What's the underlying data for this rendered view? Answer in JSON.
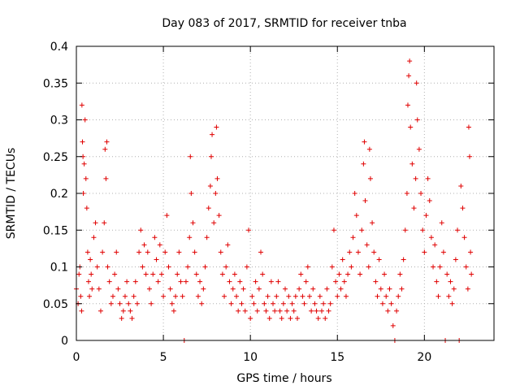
{
  "chart_data": {
    "type": "scatter",
    "title": "Day 083 of 2017, SRMTID for receiver tnba",
    "xlabel": "GPS time / hours",
    "ylabel": "SRMTID / TECUs",
    "xlim": [
      0,
      24
    ],
    "ylim": [
      0,
      0.4
    ],
    "xticks": [
      0,
      5,
      10,
      15,
      20
    ],
    "xtick_labels": [
      "0",
      "5",
      "10",
      "15",
      "20"
    ],
    "yticks": [
      0,
      0.05,
      0.1,
      0.15,
      0.2,
      0.25,
      0.3,
      0.35,
      0.4
    ],
    "ytick_labels": [
      "0",
      "0.05",
      "0.1",
      "0.15",
      "0.2",
      "0.25",
      "0.3",
      "0.35",
      "0.4"
    ],
    "grid": true,
    "marker": "+",
    "color": "#e00000",
    "series": [
      {
        "name": "SRMTID",
        "points": [
          [
            0.0,
            0.07
          ],
          [
            0.1,
            0.05
          ],
          [
            0.15,
            0.09
          ],
          [
            0.2,
            0.1
          ],
          [
            0.25,
            0.06
          ],
          [
            0.3,
            0.04
          ],
          [
            0.32,
            0.32
          ],
          [
            0.35,
            0.27
          ],
          [
            0.38,
            0.25
          ],
          [
            0.4,
            0.2
          ],
          [
            0.45,
            0.24
          ],
          [
            0.5,
            0.3
          ],
          [
            0.55,
            0.22
          ],
          [
            0.6,
            0.18
          ],
          [
            0.65,
            0.12
          ],
          [
            0.7,
            0.08
          ],
          [
            0.75,
            0.06
          ],
          [
            0.8,
            0.11
          ],
          [
            0.85,
            0.09
          ],
          [
            0.9,
            0.07
          ],
          [
            1.0,
            0.14
          ],
          [
            1.1,
            0.16
          ],
          [
            1.2,
            0.1
          ],
          [
            1.3,
            0.07
          ],
          [
            1.4,
            0.04
          ],
          [
            1.5,
            0.12
          ],
          [
            1.6,
            0.16
          ],
          [
            1.65,
            0.26
          ],
          [
            1.7,
            0.22
          ],
          [
            1.75,
            0.27
          ],
          [
            1.8,
            0.1
          ],
          [
            1.9,
            0.08
          ],
          [
            2.0,
            0.05
          ],
          [
            2.1,
            0.06
          ],
          [
            2.2,
            0.09
          ],
          [
            2.3,
            0.12
          ],
          [
            2.4,
            0.07
          ],
          [
            2.5,
            0.05
          ],
          [
            2.6,
            0.03
          ],
          [
            2.7,
            0.04
          ],
          [
            2.8,
            0.06
          ],
          [
            2.9,
            0.08
          ],
          [
            3.0,
            0.05
          ],
          [
            3.1,
            0.04
          ],
          [
            3.2,
            0.03
          ],
          [
            3.3,
            0.06
          ],
          [
            3.4,
            0.08
          ],
          [
            3.5,
            0.05
          ],
          [
            3.6,
            0.12
          ],
          [
            3.7,
            0.15
          ],
          [
            3.8,
            0.1
          ],
          [
            3.9,
            0.13
          ],
          [
            4.0,
            0.09
          ],
          [
            4.1,
            0.12
          ],
          [
            4.2,
            0.07
          ],
          [
            4.3,
            0.05
          ],
          [
            4.4,
            0.09
          ],
          [
            4.5,
            0.14
          ],
          [
            4.6,
            0.11
          ],
          [
            4.7,
            0.08
          ],
          [
            4.8,
            0.13
          ],
          [
            4.9,
            0.09
          ],
          [
            5.0,
            0.06
          ],
          [
            5.1,
            0.12
          ],
          [
            5.2,
            0.17
          ],
          [
            5.3,
            0.1
          ],
          [
            5.4,
            0.07
          ],
          [
            5.5,
            0.05
          ],
          [
            5.6,
            0.04
          ],
          [
            5.7,
            0.06
          ],
          [
            5.8,
            0.09
          ],
          [
            5.9,
            0.12
          ],
          [
            6.0,
            0.08
          ],
          [
            6.1,
            0.06
          ],
          [
            6.2,
            0.0
          ],
          [
            6.3,
            0.08
          ],
          [
            6.4,
            0.1
          ],
          [
            6.5,
            0.14
          ],
          [
            6.55,
            0.25
          ],
          [
            6.6,
            0.2
          ],
          [
            6.7,
            0.16
          ],
          [
            6.8,
            0.12
          ],
          [
            6.9,
            0.09
          ],
          [
            7.0,
            0.06
          ],
          [
            7.1,
            0.08
          ],
          [
            7.2,
            0.05
          ],
          [
            7.3,
            0.07
          ],
          [
            7.4,
            0.1
          ],
          [
            7.5,
            0.14
          ],
          [
            7.6,
            0.18
          ],
          [
            7.7,
            0.21
          ],
          [
            7.75,
            0.25
          ],
          [
            7.8,
            0.28
          ],
          [
            7.9,
            0.16
          ],
          [
            8.0,
            0.2
          ],
          [
            8.05,
            0.29
          ],
          [
            8.1,
            0.22
          ],
          [
            8.2,
            0.17
          ],
          [
            8.3,
            0.12
          ],
          [
            8.4,
            0.09
          ],
          [
            8.5,
            0.06
          ],
          [
            8.6,
            0.1
          ],
          [
            8.7,
            0.13
          ],
          [
            8.8,
            0.08
          ],
          [
            8.9,
            0.05
          ],
          [
            9.0,
            0.07
          ],
          [
            9.1,
            0.09
          ],
          [
            9.2,
            0.06
          ],
          [
            9.3,
            0.04
          ],
          [
            9.4,
            0.08
          ],
          [
            9.5,
            0.05
          ],
          [
            9.6,
            0.07
          ],
          [
            9.7,
            0.04
          ],
          [
            9.8,
            0.1
          ],
          [
            9.9,
            0.15
          ],
          [
            10.0,
            0.03
          ],
          [
            10.1,
            0.06
          ],
          [
            10.2,
            0.05
          ],
          [
            10.3,
            0.08
          ],
          [
            10.4,
            0.04
          ],
          [
            10.5,
            0.07
          ],
          [
            10.6,
            0.12
          ],
          [
            10.7,
            0.09
          ],
          [
            10.8,
            0.05
          ],
          [
            10.9,
            0.04
          ],
          [
            11.0,
            0.06
          ],
          [
            11.1,
            0.03
          ],
          [
            11.2,
            0.08
          ],
          [
            11.3,
            0.05
          ],
          [
            11.4,
            0.04
          ],
          [
            11.5,
            0.06
          ],
          [
            11.6,
            0.08
          ],
          [
            11.7,
            0.04
          ],
          [
            11.8,
            0.03
          ],
          [
            11.9,
            0.05
          ],
          [
            12.0,
            0.07
          ],
          [
            12.1,
            0.04
          ],
          [
            12.2,
            0.06
          ],
          [
            12.3,
            0.03
          ],
          [
            12.4,
            0.05
          ],
          [
            12.5,
            0.04
          ],
          [
            12.6,
            0.06
          ],
          [
            12.7,
            0.03
          ],
          [
            12.8,
            0.07
          ],
          [
            12.9,
            0.09
          ],
          [
            13.0,
            0.06
          ],
          [
            13.1,
            0.05
          ],
          [
            13.2,
            0.08
          ],
          [
            13.3,
            0.1
          ],
          [
            13.4,
            0.06
          ],
          [
            13.5,
            0.04
          ],
          [
            13.6,
            0.07
          ],
          [
            13.7,
            0.05
          ],
          [
            13.8,
            0.04
          ],
          [
            13.9,
            0.03
          ],
          [
            14.0,
            0.06
          ],
          [
            14.1,
            0.04
          ],
          [
            14.2,
            0.05
          ],
          [
            14.3,
            0.03
          ],
          [
            14.4,
            0.07
          ],
          [
            14.5,
            0.04
          ],
          [
            14.6,
            0.05
          ],
          [
            14.7,
            0.1
          ],
          [
            14.8,
            0.15
          ],
          [
            14.9,
            0.08
          ],
          [
            15.0,
            0.06
          ],
          [
            15.1,
            0.09
          ],
          [
            15.2,
            0.07
          ],
          [
            15.3,
            0.11
          ],
          [
            15.4,
            0.08
          ],
          [
            15.5,
            0.06
          ],
          [
            15.6,
            0.09
          ],
          [
            15.7,
            0.12
          ],
          [
            15.8,
            0.1
          ],
          [
            15.9,
            0.14
          ],
          [
            16.0,
            0.2
          ],
          [
            16.1,
            0.17
          ],
          [
            16.2,
            0.12
          ],
          [
            16.3,
            0.09
          ],
          [
            16.4,
            0.15
          ],
          [
            16.5,
            0.24
          ],
          [
            16.55,
            0.27
          ],
          [
            16.6,
            0.19
          ],
          [
            16.7,
            0.13
          ],
          [
            16.8,
            0.1
          ],
          [
            16.85,
            0.26
          ],
          [
            16.9,
            0.22
          ],
          [
            17.0,
            0.16
          ],
          [
            17.1,
            0.12
          ],
          [
            17.2,
            0.08
          ],
          [
            17.3,
            0.06
          ],
          [
            17.4,
            0.11
          ],
          [
            17.5,
            0.07
          ],
          [
            17.6,
            0.05
          ],
          [
            17.7,
            0.09
          ],
          [
            17.8,
            0.06
          ],
          [
            17.9,
            0.04
          ],
          [
            18.0,
            0.07
          ],
          [
            18.1,
            0.05
          ],
          [
            18.2,
            0.02
          ],
          [
            18.3,
            0.0
          ],
          [
            18.4,
            0.04
          ],
          [
            18.5,
            0.06
          ],
          [
            18.6,
            0.09
          ],
          [
            18.7,
            0.07
          ],
          [
            18.8,
            0.11
          ],
          [
            18.9,
            0.15
          ],
          [
            19.0,
            0.2
          ],
          [
            19.05,
            0.32
          ],
          [
            19.1,
            0.36
          ],
          [
            19.15,
            0.38
          ],
          [
            19.2,
            0.29
          ],
          [
            19.3,
            0.24
          ],
          [
            19.4,
            0.18
          ],
          [
            19.5,
            0.22
          ],
          [
            19.55,
            0.35
          ],
          [
            19.6,
            0.3
          ],
          [
            19.7,
            0.26
          ],
          [
            19.8,
            0.2
          ],
          [
            19.9,
            0.15
          ],
          [
            20.0,
            0.12
          ],
          [
            20.1,
            0.17
          ],
          [
            20.2,
            0.22
          ],
          [
            20.3,
            0.19
          ],
          [
            20.4,
            0.14
          ],
          [
            20.5,
            0.1
          ],
          [
            20.6,
            0.13
          ],
          [
            20.7,
            0.08
          ],
          [
            20.8,
            0.06
          ],
          [
            20.9,
            0.1
          ],
          [
            21.0,
            0.16
          ],
          [
            21.1,
            0.12
          ],
          [
            21.2,
            0.0
          ],
          [
            21.3,
            0.09
          ],
          [
            21.4,
            0.06
          ],
          [
            21.5,
            0.08
          ],
          [
            21.6,
            0.05
          ],
          [
            21.7,
            0.07
          ],
          [
            21.8,
            0.11
          ],
          [
            21.9,
            0.15
          ],
          [
            22.0,
            0.0
          ],
          [
            22.1,
            0.21
          ],
          [
            22.2,
            0.18
          ],
          [
            22.3,
            0.14
          ],
          [
            22.4,
            0.1
          ],
          [
            22.5,
            0.07
          ],
          [
            22.55,
            0.29
          ],
          [
            22.6,
            0.25
          ],
          [
            22.65,
            0.12
          ],
          [
            22.7,
            0.09
          ]
        ]
      }
    ]
  }
}
